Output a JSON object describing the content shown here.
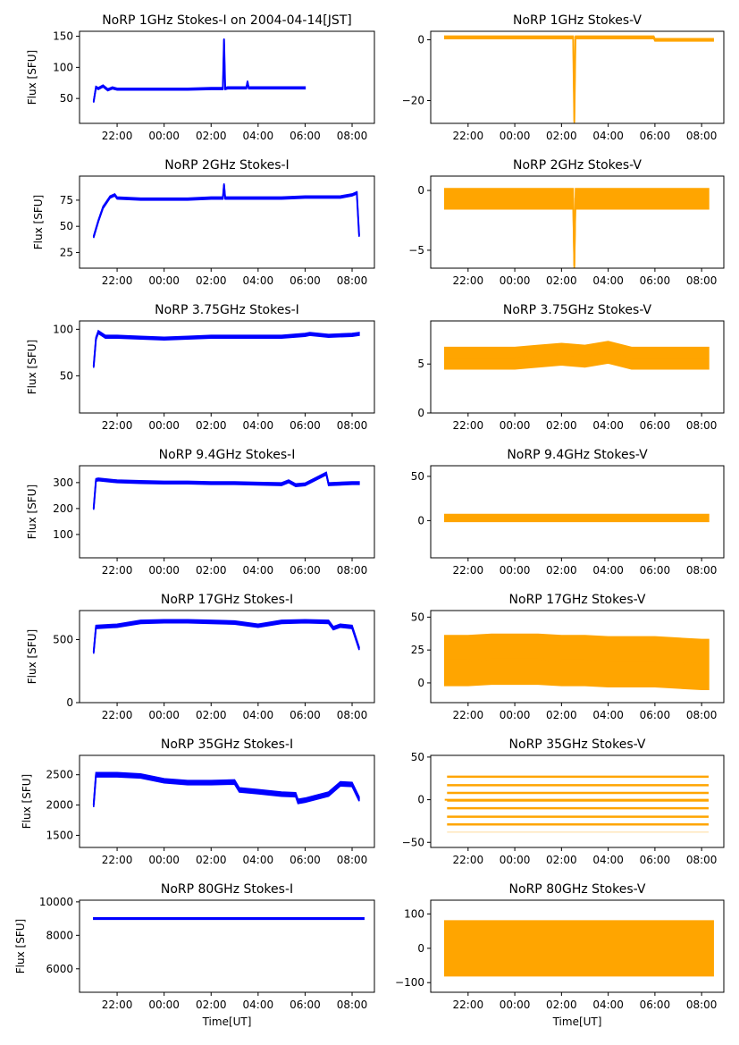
{
  "chart_data": [
    {
      "id": "p1i",
      "type": "scatter",
      "title": "NoRP 1GHz Stokes-I on 2004-04-14[JST]",
      "ylabel": "Flux [SFU]",
      "xlabel": "",
      "color": "#0000ff",
      "ylim": [
        10,
        158
      ],
      "yticks": [
        50,
        100,
        150
      ],
      "xlim": [
        -3.6,
        8.95
      ],
      "xticks": [
        {
          "t": -2,
          "label": "22:00"
        },
        {
          "t": 0,
          "label": "00:00"
        },
        {
          "t": 2,
          "label": "02:00"
        },
        {
          "t": 4,
          "label": "04:00"
        },
        {
          "t": 6,
          "label": "06:00"
        },
        {
          "t": 8,
          "label": "08:00"
        }
      ],
      "series": [
        {
          "name": "Stokes-I",
          "x": [
            -3,
            -2.9,
            -2.8,
            -2.6,
            -2.4,
            -2.2,
            -2,
            -1,
            0,
            1,
            2,
            2.5,
            2.55,
            2.6,
            2.7,
            3,
            3.5,
            3.55,
            3.6,
            4,
            5,
            5.5,
            6
          ],
          "y": [
            45,
            68,
            66,
            70,
            64,
            67,
            65,
            65,
            65,
            65,
            66,
            66,
            145,
            66,
            67,
            67,
            67,
            77,
            67,
            67,
            67,
            67,
            67
          ]
        }
      ],
      "band": 3
    },
    {
      "id": "p1v",
      "type": "scatter",
      "title": "NoRP 1GHz Stokes-V",
      "ylabel": "",
      "xlabel": "",
      "color": "#ffa500",
      "ylim": [
        -27.5,
        2.8
      ],
      "yticks": [
        -20,
        0
      ],
      "xlim": [
        -3.6,
        8.95
      ],
      "xticks": [
        {
          "t": -2,
          "label": "22:00"
        },
        {
          "t": 0,
          "label": "00:00"
        },
        {
          "t": 2,
          "label": "02:00"
        },
        {
          "t": 4,
          "label": "04:00"
        },
        {
          "t": 6,
          "label": "06:00"
        },
        {
          "t": 8,
          "label": "08:00"
        }
      ],
      "series": [
        {
          "name": "Stokes-V",
          "x": [
            -3,
            -1,
            0,
            1,
            2,
            2.5,
            2.55,
            2.6,
            3,
            4,
            5,
            5.95,
            6,
            7,
            8,
            8.5
          ],
          "y": [
            0.8,
            0.8,
            0.8,
            0.8,
            0.8,
            0.8,
            -27,
            0.8,
            0.8,
            0.8,
            0.8,
            0.8,
            0,
            0,
            0,
            0
          ]
        }
      ],
      "band": 0.8
    },
    {
      "id": "p2i",
      "type": "scatter",
      "title": "NoRP 2GHz Stokes-I",
      "ylabel": "Flux [SFU]",
      "xlabel": "",
      "color": "#0000ff",
      "ylim": [
        10,
        98
      ],
      "yticks": [
        25,
        50,
        75
      ],
      "xlim": [
        -3.6,
        8.95
      ],
      "xticks": [
        {
          "t": -2,
          "label": "22:00"
        },
        {
          "t": 0,
          "label": "00:00"
        },
        {
          "t": 2,
          "label": "02:00"
        },
        {
          "t": 4,
          "label": "04:00"
        },
        {
          "t": 6,
          "label": "06:00"
        },
        {
          "t": 8,
          "label": "08:00"
        }
      ],
      "series": [
        {
          "name": "Stokes-I",
          "x": [
            -3,
            -2.8,
            -2.6,
            -2.3,
            -2.1,
            -2,
            -1,
            0,
            1,
            2,
            2.5,
            2.55,
            2.6,
            3,
            4,
            5,
            6,
            7,
            7.5,
            8,
            8.2,
            8.3
          ],
          "y": [
            40,
            55,
            68,
            78,
            80,
            77,
            76,
            76,
            76,
            77,
            77,
            90,
            77,
            77,
            77,
            77,
            78,
            78,
            78,
            80,
            82,
            41
          ]
        }
      ],
      "band": 2
    },
    {
      "id": "p2v",
      "type": "scatter",
      "title": "NoRP 2GHz Stokes-V",
      "ylabel": "",
      "xlabel": "",
      "color": "#ffa500",
      "ylim": [
        -6.5,
        1.2
      ],
      "yticks": [
        -5,
        0
      ],
      "xlim": [
        -3.6,
        8.95
      ],
      "xticks": [
        {
          "t": -2,
          "label": "22:00"
        },
        {
          "t": 0,
          "label": "00:00"
        },
        {
          "t": 2,
          "label": "02:00"
        },
        {
          "t": 4,
          "label": "04:00"
        },
        {
          "t": 6,
          "label": "06:00"
        },
        {
          "t": 8,
          "label": "08:00"
        }
      ],
      "series": [
        {
          "name": "Stokes-V",
          "x": [
            -3,
            -2,
            -1,
            0,
            1,
            2,
            2.5,
            2.55,
            2.6,
            3,
            4,
            5,
            6,
            7,
            8,
            8.3
          ],
          "y": [
            -0.7,
            -0.7,
            -0.7,
            -0.7,
            -0.7,
            -0.7,
            -0.7,
            -6.3,
            -0.7,
            -0.7,
            -0.7,
            -0.7,
            -0.7,
            -0.7,
            -0.7,
            -0.7
          ]
        }
      ],
      "band": 1.7
    },
    {
      "id": "p3i",
      "type": "scatter",
      "title": "NoRP 3.75GHz Stokes-I",
      "ylabel": "Flux [SFU]",
      "xlabel": "",
      "color": "#0000ff",
      "ylim": [
        10,
        109
      ],
      "yticks": [
        50,
        100
      ],
      "xlim": [
        -3.6,
        8.95
      ],
      "xticks": [
        {
          "t": -2,
          "label": "22:00"
        },
        {
          "t": 0,
          "label": "00:00"
        },
        {
          "t": 2,
          "label": "02:00"
        },
        {
          "t": 4,
          "label": "04:00"
        },
        {
          "t": 6,
          "label": "06:00"
        },
        {
          "t": 8,
          "label": "08:00"
        }
      ],
      "series": [
        {
          "name": "Stokes-I",
          "x": [
            -3,
            -2.9,
            -2.8,
            -2.5,
            -2,
            -1,
            0,
            1,
            2,
            3,
            4,
            5,
            6,
            6.2,
            7,
            8,
            8.3
          ],
          "y": [
            60,
            90,
            97,
            92,
            92,
            91,
            90,
            91,
            92,
            92,
            92,
            92,
            94,
            95,
            93,
            94,
            95
          ]
        }
      ],
      "band": 3
    },
    {
      "id": "p3v",
      "type": "scatter",
      "title": "NoRP 3.75GHz Stokes-V",
      "ylabel": "",
      "xlabel": "",
      "color": "#ffa500",
      "ylim": [
        0,
        9.4
      ],
      "yticks": [
        0,
        5
      ],
      "xlim": [
        -3.6,
        8.95
      ],
      "xticks": [
        {
          "t": -2,
          "label": "22:00"
        },
        {
          "t": 0,
          "label": "00:00"
        },
        {
          "t": 2,
          "label": "02:00"
        },
        {
          "t": 4,
          "label": "04:00"
        },
        {
          "t": 6,
          "label": "06:00"
        },
        {
          "t": 8,
          "label": "08:00"
        }
      ],
      "series": [
        {
          "name": "Stokes-V",
          "x": [
            -3,
            -2,
            -1,
            0,
            1,
            2,
            3,
            4,
            5,
            6,
            7,
            8,
            8.3
          ],
          "y": [
            5.6,
            5.6,
            5.6,
            5.6,
            5.8,
            6,
            5.8,
            6.2,
            5.6,
            5.6,
            5.6,
            5.6,
            5.6
          ]
        }
      ],
      "band": 2.2
    },
    {
      "id": "p4i",
      "type": "scatter",
      "title": "NoRP 9.4GHz Stokes-I",
      "ylabel": "Flux [SFU]",
      "xlabel": "",
      "color": "#0000ff",
      "ylim": [
        10,
        365
      ],
      "yticks": [
        100,
        200,
        300
      ],
      "xlim": [
        -3.6,
        8.95
      ],
      "xticks": [
        {
          "t": -2,
          "label": "22:00"
        },
        {
          "t": 0,
          "label": "00:00"
        },
        {
          "t": 2,
          "label": "02:00"
        },
        {
          "t": 4,
          "label": "04:00"
        },
        {
          "t": 6,
          "label": "06:00"
        },
        {
          "t": 8,
          "label": "08:00"
        }
      ],
      "series": [
        {
          "name": "Stokes-I",
          "x": [
            -3,
            -2.9,
            -2.8,
            -2,
            -1,
            0,
            1,
            2,
            3,
            4,
            5,
            5.3,
            5.6,
            6,
            6.9,
            7,
            8,
            8.3
          ],
          "y": [
            200,
            310,
            312,
            305,
            302,
            300,
            300,
            298,
            298,
            296,
            294,
            305,
            290,
            293,
            335,
            294,
            298,
            298
          ]
        }
      ],
      "band": 10
    },
    {
      "id": "p4v",
      "type": "scatter",
      "title": "NoRP 9.4GHz Stokes-V",
      "ylabel": "",
      "xlabel": "",
      "color": "#ffa500",
      "ylim": [
        -42,
        62
      ],
      "yticks": [
        0,
        50
      ],
      "xlim": [
        -3.6,
        8.95
      ],
      "xticks": [
        {
          "t": -2,
          "label": "22:00"
        },
        {
          "t": 0,
          "label": "00:00"
        },
        {
          "t": 2,
          "label": "02:00"
        },
        {
          "t": 4,
          "label": "04:00"
        },
        {
          "t": 6,
          "label": "06:00"
        },
        {
          "t": 8,
          "label": "08:00"
        }
      ],
      "series": [
        {
          "name": "Stokes-V",
          "x": [
            -3,
            -2,
            -1,
            0,
            1,
            2,
            3,
            4,
            5,
            6,
            7,
            8,
            8.3
          ],
          "y": [
            3,
            3,
            3,
            3,
            3,
            3,
            3,
            3,
            3,
            3,
            3,
            3,
            3
          ]
        }
      ],
      "band": 8
    },
    {
      "id": "p5i",
      "type": "scatter",
      "title": "NoRP 17GHz Stokes-I",
      "ylabel": "Flux [SFU]",
      "xlabel": "",
      "color": "#0000ff",
      "ylim": [
        0,
        730
      ],
      "yticks": [
        0,
        500
      ],
      "xlim": [
        -3.6,
        8.95
      ],
      "xticks": [
        {
          "t": -2,
          "label": "22:00"
        },
        {
          "t": 0,
          "label": "00:00"
        },
        {
          "t": 2,
          "label": "02:00"
        },
        {
          "t": 4,
          "label": "04:00"
        },
        {
          "t": 6,
          "label": "06:00"
        },
        {
          "t": 8,
          "label": "08:00"
        }
      ],
      "series": [
        {
          "name": "Stokes-I",
          "x": [
            -3,
            -2.9,
            -2,
            -1,
            0,
            1,
            2,
            3,
            4,
            5,
            6,
            7,
            7.2,
            7.5,
            8,
            8.3
          ],
          "y": [
            400,
            600,
            610,
            640,
            645,
            645,
            640,
            635,
            610,
            640,
            645,
            640,
            590,
            610,
            600,
            430
          ]
        }
      ],
      "band": 25
    },
    {
      "id": "p5v",
      "type": "scatter",
      "title": "NoRP 17GHz Stokes-V",
      "ylabel": "",
      "xlabel": "",
      "color": "#ffa500",
      "ylim": [
        -15,
        55
      ],
      "yticks": [
        0,
        25,
        50
      ],
      "xlim": [
        -3.6,
        8.95
      ],
      "xticks": [
        {
          "t": -2,
          "label": "22:00"
        },
        {
          "t": 0,
          "label": "00:00"
        },
        {
          "t": 2,
          "label": "02:00"
        },
        {
          "t": 4,
          "label": "04:00"
        },
        {
          "t": 6,
          "label": "06:00"
        },
        {
          "t": 8,
          "label": "08:00"
        }
      ],
      "series": [
        {
          "name": "Stokes-V",
          "x": [
            -3,
            -2,
            -1,
            0,
            1,
            2,
            3,
            4,
            5,
            6,
            7,
            8,
            8.3
          ],
          "y": [
            17,
            17,
            18,
            18,
            18,
            17,
            17,
            16,
            16,
            16,
            15,
            14,
            14
          ]
        }
      ],
      "band": 38
    },
    {
      "id": "p6i",
      "type": "scatter",
      "title": "NoRP 35GHz Stokes-I",
      "ylabel": "Flux [SFU]",
      "xlabel": "",
      "color": "#0000ff",
      "ylim": [
        1300,
        2820
      ],
      "yticks": [
        1500,
        2000,
        2500
      ],
      "xlim": [
        -3.6,
        8.95
      ],
      "xticks": [
        {
          "t": -2,
          "label": "22:00"
        },
        {
          "t": 0,
          "label": "00:00"
        },
        {
          "t": 2,
          "label": "02:00"
        },
        {
          "t": 4,
          "label": "04:00"
        },
        {
          "t": 6,
          "label": "06:00"
        },
        {
          "t": 8,
          "label": "08:00"
        }
      ],
      "series": [
        {
          "name": "Stokes-I",
          "x": [
            -3,
            -2.9,
            -2,
            -1,
            0,
            1,
            2,
            3,
            3.2,
            4,
            5,
            5.6,
            5.7,
            6,
            7,
            7.5,
            8,
            8.3
          ],
          "y": [
            2000,
            2500,
            2500,
            2480,
            2400,
            2370,
            2370,
            2380,
            2250,
            2220,
            2180,
            2170,
            2060,
            2080,
            2180,
            2350,
            2340,
            2100
          ]
        }
      ],
      "band": 70
    },
    {
      "id": "p6v",
      "type": "scatter",
      "title": "NoRP 35GHz Stokes-V",
      "ylabel": "",
      "xlabel": "",
      "color": "#ffa500",
      "ylim": [
        -56,
        52
      ],
      "yticks": [
        -50,
        0,
        50
      ],
      "xlim": [
        -3.6,
        8.95
      ],
      "xticks": [
        {
          "t": -2,
          "label": "22:00"
        },
        {
          "t": 0,
          "label": "00:00"
        },
        {
          "t": 2,
          "label": "02:00"
        },
        {
          "t": 4,
          "label": "04:00"
        },
        {
          "t": 6,
          "label": "06:00"
        },
        {
          "t": 8,
          "label": "08:00"
        }
      ],
      "levels": [
        27,
        17,
        8,
        -1,
        -10,
        -20,
        -29,
        -38
      ],
      "series": [
        {
          "name": "Stokes-V",
          "x": [
            -3,
            8.3
          ],
          "y": [
            0,
            0
          ]
        }
      ],
      "band": 0
    },
    {
      "id": "p7i",
      "type": "scatter",
      "title": "NoRP 80GHz Stokes-I",
      "ylabel": "Flux [SFU]",
      "xlabel": "Time[UT]",
      "color": "#0000ff",
      "ylim": [
        4600,
        10100
      ],
      "yticks": [
        6000,
        8000,
        10000
      ],
      "xlim": [
        -3.6,
        8.95
      ],
      "xticks": [
        {
          "t": -2,
          "label": "22:00"
        },
        {
          "t": 0,
          "label": "00:00"
        },
        {
          "t": 2,
          "label": "02:00"
        },
        {
          "t": 4,
          "label": "04:00"
        },
        {
          "t": 6,
          "label": "06:00"
        },
        {
          "t": 8,
          "label": "08:00"
        }
      ],
      "series": [
        {
          "name": "Stokes-I",
          "x": [
            -3,
            8.5
          ],
          "y": [
            9000,
            9000
          ]
        }
      ],
      "band": 90
    },
    {
      "id": "p7v",
      "type": "scatter",
      "title": "NoRP 80GHz Stokes-V",
      "ylabel": "",
      "xlabel": "Time[UT]",
      "color": "#ffa500",
      "ylim": [
        -128,
        140
      ],
      "yticks": [
        -100,
        0,
        100
      ],
      "xlim": [
        -3.6,
        8.95
      ],
      "xticks": [
        {
          "t": -2,
          "label": "22:00"
        },
        {
          "t": 0,
          "label": "00:00"
        },
        {
          "t": 2,
          "label": "02:00"
        },
        {
          "t": 4,
          "label": "04:00"
        },
        {
          "t": 6,
          "label": "06:00"
        },
        {
          "t": 8,
          "label": "08:00"
        }
      ],
      "series": [
        {
          "name": "Stokes-V",
          "x": [
            -3,
            8.5
          ],
          "y": [
            0,
            0
          ]
        }
      ],
      "band": 160
    }
  ]
}
